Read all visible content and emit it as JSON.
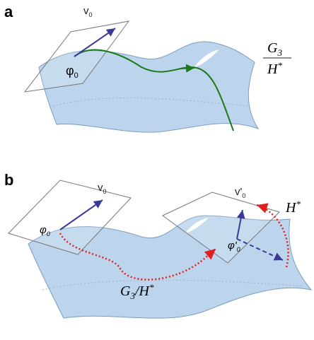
{
  "panel_a": {
    "label": "a",
    "vector": {
      "main": "v",
      "sub": "0"
    },
    "point": {
      "main": "φ",
      "sub": "0"
    },
    "quotient": {
      "numerator": {
        "main": "G",
        "sub": "3"
      },
      "denominator": {
        "main": "H",
        "sup": "*"
      }
    }
  },
  "panel_b": {
    "label": "b",
    "vector": {
      "main": "v",
      "sub": "0"
    },
    "point": {
      "main": "φ",
      "sub": "0"
    },
    "vector_prime": {
      "main": "v'",
      "sub": "0"
    },
    "point_prime": {
      "main": "φ'",
      "sub": "0"
    },
    "group": {
      "main": "H",
      "sup": "*"
    },
    "path_label": {
      "g": "G",
      "sub": "3",
      "slash": "/",
      "h": "H",
      "sup": "*"
    }
  }
}
